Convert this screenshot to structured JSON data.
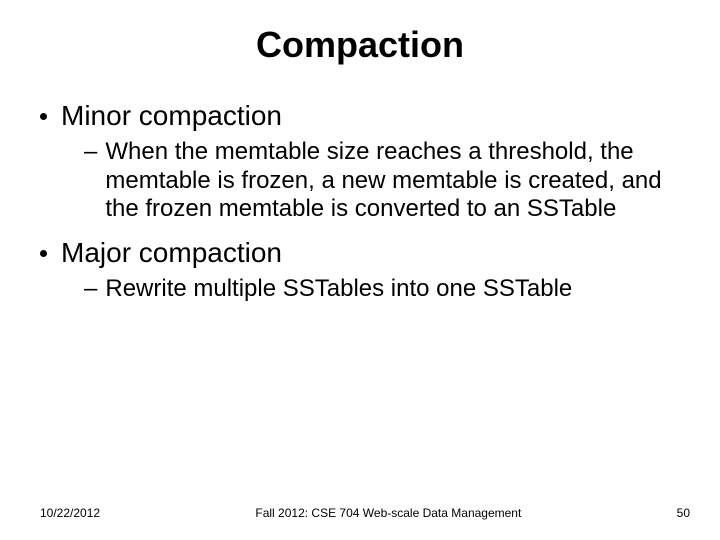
{
  "slide": {
    "title": "Compaction",
    "title_fontsize": 36,
    "bullets": [
      {
        "level": 1,
        "text": "Minor compaction",
        "fontsize": 28,
        "children": [
          {
            "level": 2,
            "text": "When the memtable size reaches a threshold, the memtable is frozen,  a new memtable is created, and the frozen memtable is converted to an SSTable",
            "fontsize": 24
          }
        ]
      },
      {
        "level": 1,
        "text": "Major compaction",
        "fontsize": 28,
        "children": [
          {
            "level": 2,
            "text": "Rewrite multiple SSTables into one SSTable",
            "fontsize": 24
          }
        ]
      }
    ],
    "footer": {
      "date": "10/22/2012",
      "center": "Fall 2012: CSE 704 Web-scale Data Management",
      "page": "50",
      "fontsize": 12
    },
    "colors": {
      "background": "#ffffff",
      "text": "#000000"
    }
  }
}
